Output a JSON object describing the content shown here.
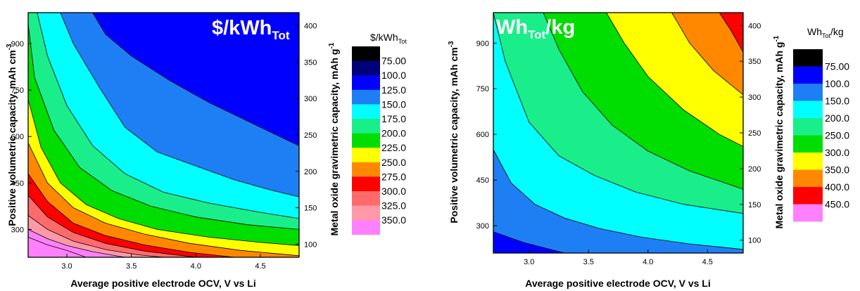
{
  "chart_data": [
    {
      "type": "contour",
      "badge": {
        "main": "$/kWh",
        "sub": "Tot"
      },
      "xlabel": "Average positive electrode OCV, V vs Li",
      "ylabel": "Positive volumetric capacity, mAh cm",
      "ylabel_sup": "-3",
      "y2label": "Metal oxide gravimetric capacity, mAh g",
      "y2label_sup": "-1",
      "xlim": [
        2.7,
        4.8
      ],
      "ylim": [
        210,
        1000
      ],
      "y2lim": [
        82,
        418
      ],
      "xticks": [
        "3.0",
        "3.5",
        "4.0",
        "4.5"
      ],
      "xtick_values": [
        3.0,
        3.5,
        4.0,
        4.5
      ],
      "yticks": [
        "300",
        "450",
        "600",
        "750",
        "900"
      ],
      "ytick_values": [
        300,
        450,
        600,
        750,
        900
      ],
      "y2ticks": [
        "100",
        "150",
        "200",
        "250",
        "300",
        "350",
        "400"
      ],
      "y2tick_values": [
        100,
        150,
        200,
        250,
        300,
        350,
        400
      ],
      "legend_title": {
        "main": "$/kWh",
        "sub": "Tot"
      },
      "levels": [
        "75.00",
        "100.0",
        "125.0",
        "150.0",
        "175.0",
        "200.0",
        "225.0",
        "250.0",
        "275.0",
        "300.0",
        "325.0",
        "350.0"
      ],
      "colors": [
        "#000000",
        "#00007a",
        "#0000ff",
        "#1e7ff5",
        "#00ffff",
        "#1aee8a",
        "#00dd00",
        "#ffff00",
        "#ff8800",
        "#ff0000",
        "#ff6a6a",
        "#ff99a8",
        "#ff80ff"
      ],
      "contours": [
        {
          "level": 125,
          "x": [
            3.2,
            3.3,
            3.5,
            3.8,
            4.1,
            4.5,
            4.8
          ],
          "y": [
            1000,
            930,
            860,
            780,
            710,
            630,
            570
          ]
        },
        {
          "level": 150,
          "x": [
            2.95,
            3.05,
            3.25,
            3.45,
            3.7,
            4.0,
            4.3,
            4.6,
            4.8
          ],
          "y": [
            1000,
            900,
            760,
            630,
            550,
            505,
            460,
            425,
            405
          ]
        },
        {
          "level": 175,
          "x": [
            2.77,
            2.85,
            3.0,
            3.2,
            3.45,
            3.75,
            4.1,
            4.5,
            4.8
          ],
          "y": [
            1000,
            860,
            700,
            570,
            480,
            420,
            385,
            355,
            335
          ]
        },
        {
          "level": 200,
          "x": [
            2.7,
            2.75,
            2.9,
            3.1,
            3.35,
            3.65,
            4.0,
            4.4,
            4.8
          ],
          "y": [
            965,
            790,
            620,
            500,
            425,
            375,
            340,
            315,
            300
          ]
        },
        {
          "level": 225,
          "x": [
            2.7,
            2.8,
            2.95,
            3.15,
            3.4,
            3.7,
            4.1,
            4.5,
            4.8
          ],
          "y": [
            720,
            565,
            450,
            380,
            335,
            300,
            275,
            258,
            248
          ]
        },
        {
          "level": 250,
          "x": [
            2.7,
            2.85,
            3.05,
            3.3,
            3.6,
            3.95,
            4.35,
            4.8
          ],
          "y": [
            580,
            450,
            370,
            320,
            285,
            255,
            232,
            215
          ]
        },
        {
          "level": 275,
          "x": [
            2.7,
            2.85,
            3.05,
            3.3,
            3.6,
            3.95,
            4.3
          ],
          "y": [
            480,
            390,
            320,
            280,
            250,
            226,
            210
          ]
        },
        {
          "level": 300,
          "x": [
            2.7,
            2.85,
            3.05,
            3.3,
            3.6,
            4.0
          ],
          "y": [
            410,
            340,
            290,
            255,
            230,
            210
          ]
        },
        {
          "level": 325,
          "x": [
            2.7,
            2.85,
            3.05,
            3.3,
            3.55,
            3.75
          ],
          "y": [
            345,
            300,
            262,
            235,
            218,
            210
          ]
        },
        {
          "level": 350,
          "x": [
            2.7,
            2.85,
            3.0,
            3.2,
            3.45
          ],
          "y": [
            300,
            270,
            248,
            228,
            210
          ]
        },
        {
          "level": 375,
          "x": [
            2.7,
            2.85,
            3.0,
            3.15
          ],
          "y": [
            275,
            250,
            232,
            210
          ]
        }
      ]
    },
    {
      "type": "contour",
      "badge": {
        "main": "Wh",
        "sub": "Tot",
        "tail": "/kg"
      },
      "xlabel": "Average positive electrode OCV, V vs Li",
      "ylabel": "Positive volumetric capacity, mAh cm",
      "ylabel_sup": "-3",
      "y2label": "Metal oxide gravimetric capacity, mAh g",
      "y2label_sup": "-1",
      "xlim": [
        2.7,
        4.8
      ],
      "ylim": [
        210,
        1000
      ],
      "y2lim": [
        82,
        418
      ],
      "xticks": [
        "3.0",
        "3.5",
        "4.0",
        "4.5"
      ],
      "xtick_values": [
        3.0,
        3.5,
        4.0,
        4.5
      ],
      "yticks": [
        "300",
        "450",
        "600",
        "750",
        "900"
      ],
      "ytick_values": [
        300,
        450,
        600,
        750,
        900
      ],
      "y2ticks": [
        "100",
        "150",
        "200",
        "250",
        "300",
        "350",
        "400"
      ],
      "y2tick_values": [
        100,
        150,
        200,
        250,
        300,
        350,
        400
      ],
      "legend_title": {
        "main": "Wh",
        "sub": "Tot",
        "tail": "/kg"
      },
      "levels": [
        "75.00",
        "100.0",
        "150.0",
        "200.0",
        "250.0",
        "300.0",
        "350.0",
        "400.0",
        "450.0"
      ],
      "colors": [
        "#000000",
        "#0000ff",
        "#1e7ff5",
        "#00ffff",
        "#1aee8a",
        "#00dd00",
        "#ffff00",
        "#ff8800",
        "#ff0000",
        "#ff80ff"
      ],
      "contours": [
        {
          "level": 100,
          "x": [
            2.7,
            2.95,
            3.3
          ],
          "y": [
            280,
            245,
            210
          ]
        },
        {
          "level": 150,
          "x": [
            2.7,
            2.85,
            3.05,
            3.3,
            3.6,
            3.95,
            4.35,
            4.8
          ],
          "y": [
            550,
            440,
            370,
            325,
            290,
            262,
            240,
            222
          ]
        },
        {
          "level": 200,
          "x": [
            2.7,
            2.8,
            3.0,
            3.25,
            3.55,
            3.9,
            4.3,
            4.8
          ],
          "y": [
            1000,
            840,
            640,
            530,
            465,
            410,
            370,
            340
          ]
        },
        {
          "level": 250,
          "x": [
            3.12,
            3.25,
            3.45,
            3.7,
            4.0,
            4.35,
            4.8
          ],
          "y": [
            1000,
            880,
            740,
            630,
            545,
            480,
            420
          ]
        },
        {
          "level": 300,
          "x": [
            3.65,
            3.8,
            4.0,
            4.3,
            4.6,
            4.8
          ],
          "y": [
            1000,
            900,
            790,
            680,
            600,
            560
          ]
        },
        {
          "level": 350,
          "x": [
            4.2,
            4.35,
            4.55,
            4.8
          ],
          "y": [
            1000,
            900,
            810,
            730
          ]
        },
        {
          "level": 400,
          "x": [
            4.6,
            4.7,
            4.8
          ],
          "y": [
            1000,
            940,
            870
          ]
        }
      ]
    }
  ]
}
